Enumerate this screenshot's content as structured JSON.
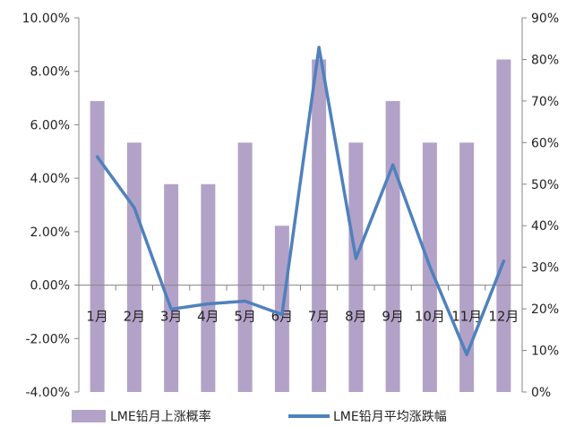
{
  "chart_data": {
    "type": "bar",
    "categories": [
      "1月",
      "2月",
      "3月",
      "4月",
      "5月",
      "6月",
      "7月",
      "8月",
      "9月",
      "10月",
      "11月",
      "12月"
    ],
    "series": [
      {
        "name": "LME铅月上涨概率",
        "type": "bar",
        "axis": "right",
        "values": [
          70,
          60,
          50,
          50,
          60,
          40,
          80,
          60,
          70,
          60,
          60,
          80
        ],
        "color": "#b3a2c7"
      },
      {
        "name": "LME铅月平均涨跌幅",
        "type": "line",
        "axis": "left",
        "values": [
          4.8,
          2.9,
          -0.9,
          -0.7,
          -0.6,
          -1.1,
          8.9,
          1.0,
          4.5,
          0.7,
          -2.6,
          0.9
        ],
        "color": "#4f81bd"
      }
    ],
    "y_left": {
      "min": -4,
      "max": 10,
      "step": 2,
      "tick_labels": [
        "-4.00%",
        "-2.00%",
        "0.00%",
        "2.00%",
        "4.00%",
        "6.00%",
        "8.00%",
        "10.00%"
      ]
    },
    "y_right": {
      "min": 0,
      "max": 90,
      "step": 10,
      "tick_labels": [
        "0%",
        "10%",
        "20%",
        "30%",
        "40%",
        "50%",
        "60%",
        "70%",
        "80%",
        "90%"
      ]
    },
    "legend": "bottom",
    "grid": false
  }
}
